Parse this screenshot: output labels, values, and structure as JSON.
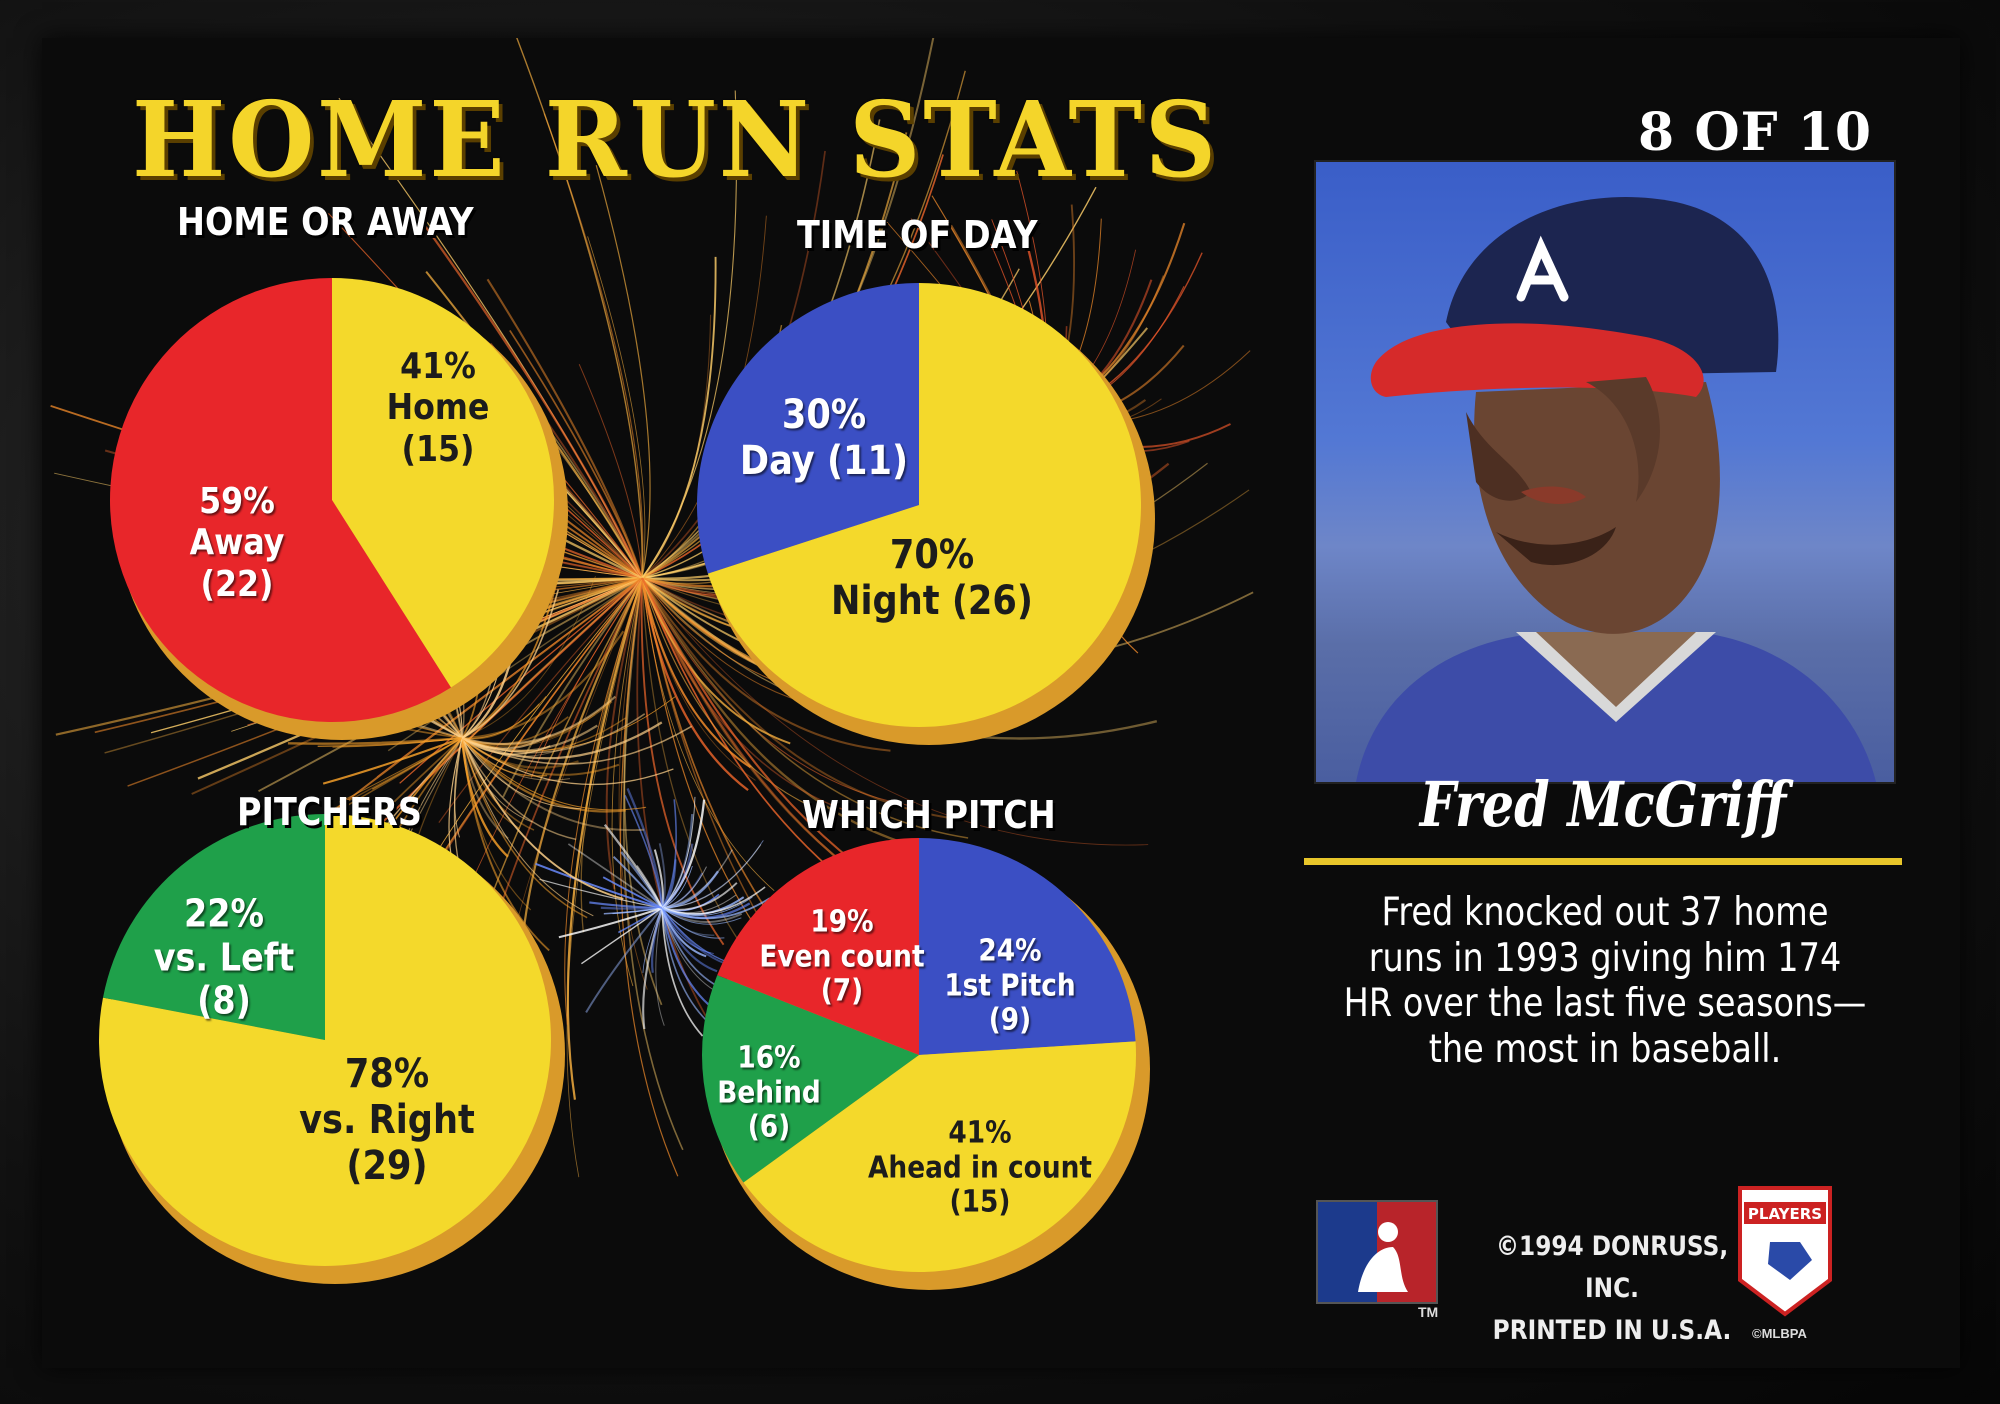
{
  "card": {
    "title": "HOME RUN STATS",
    "number": "8 OF 10",
    "player_name": "Fred McGriff",
    "bio": "Fred knocked out 37 home runs in 1993 giving him 174 HR over the last five seasons—the most in baseball.",
    "copyright_line1": "©1994 DONRUSS, INC.",
    "copyright_line2": "PRINTED IN U.S.A.",
    "trademark": "TM",
    "logo_text": "PLAYERS",
    "logo_subtext": "©MLBPA"
  },
  "colors": {
    "yellow": "#f4d92b",
    "red": "#e8262a",
    "blue": "#3b4fc4",
    "green": "#1fa04a",
    "rim": "#d99a2a",
    "title": "#f4d52a"
  },
  "chart_data": [
    {
      "type": "pie",
      "title": "HOME OR AWAY",
      "slices": [
        {
          "label": "Home",
          "percent": 41,
          "count": 15,
          "text": [
            "41%",
            "Home",
            "(15)"
          ],
          "color": "#f4d92b"
        },
        {
          "label": "Away",
          "percent": 59,
          "count": 22,
          "text": [
            "59%",
            "Away",
            "(22)"
          ],
          "color": "#e8262a"
        }
      ]
    },
    {
      "type": "pie",
      "title": "TIME OF DAY",
      "slices": [
        {
          "label": "Night",
          "percent": 70,
          "count": 26,
          "text": [
            "70%",
            "Night (26)"
          ],
          "color": "#f4d92b"
        },
        {
          "label": "Day",
          "percent": 30,
          "count": 11,
          "text": [
            "30%",
            "Day (11)"
          ],
          "color": "#3b4fc4"
        }
      ]
    },
    {
      "type": "pie",
      "title": "PITCHERS",
      "slices": [
        {
          "label": "vs. Right",
          "percent": 78,
          "count": 29,
          "text": [
            "78%",
            "vs. Right",
            "(29)"
          ],
          "color": "#f4d92b"
        },
        {
          "label": "vs. Left",
          "percent": 22,
          "count": 8,
          "text": [
            "22%",
            "vs. Left",
            "(8)"
          ],
          "color": "#1fa04a"
        }
      ]
    },
    {
      "type": "pie",
      "title": "WHICH PITCH",
      "slices": [
        {
          "label": "1st Pitch",
          "percent": 24,
          "count": 9,
          "text": [
            "24%",
            "1st Pitch",
            "(9)"
          ],
          "color": "#3b4fc4"
        },
        {
          "label": "Ahead in count",
          "percent": 41,
          "count": 15,
          "text": [
            "41%",
            "Ahead in count",
            "(15)"
          ],
          "color": "#f4d92b"
        },
        {
          "label": "Behind",
          "percent": 16,
          "count": 6,
          "text": [
            "16%",
            "Behind",
            "(6)"
          ],
          "color": "#1fa04a"
        },
        {
          "label": "Even count",
          "percent": 19,
          "count": 7,
          "text": [
            "19%",
            "Even count",
            "(7)"
          ],
          "color": "#e8262a"
        }
      ]
    }
  ]
}
